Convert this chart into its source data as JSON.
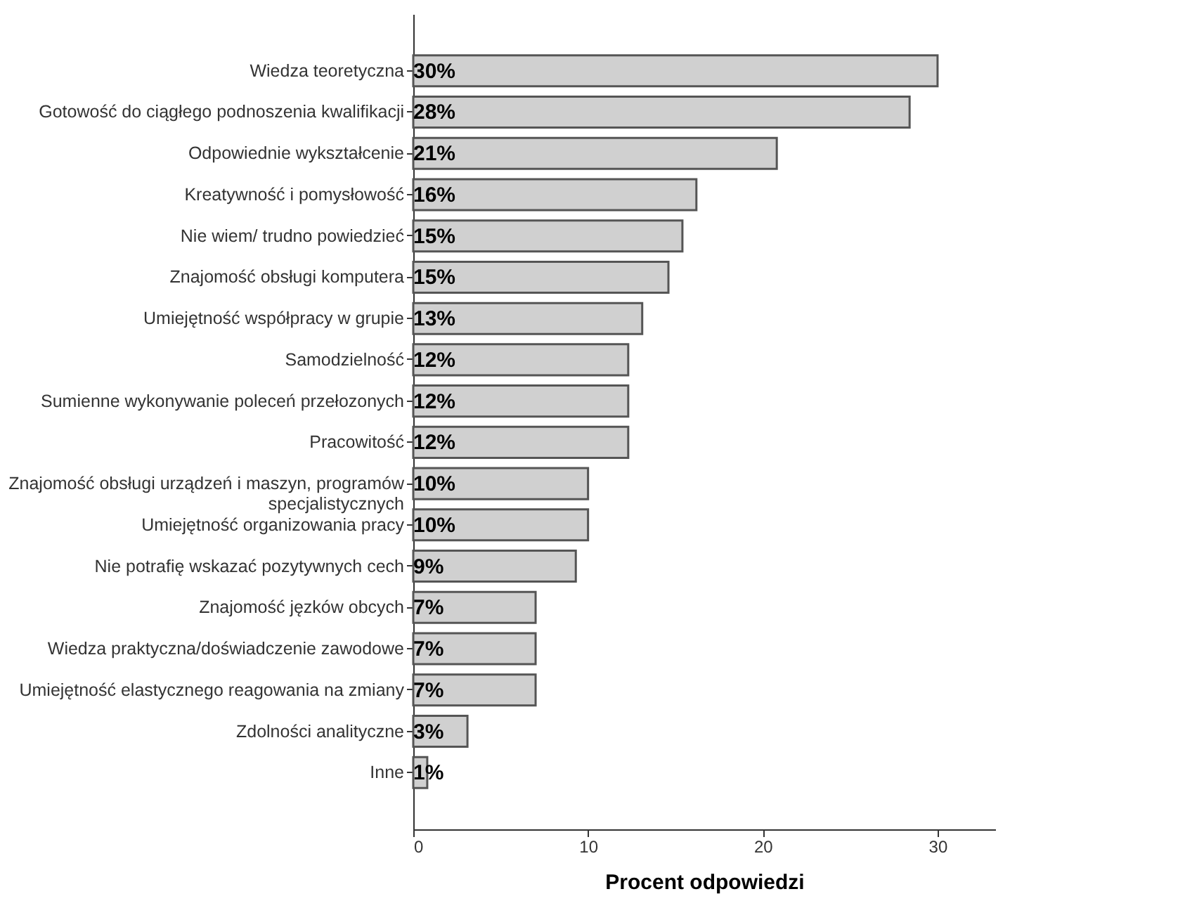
{
  "chart_data": {
    "type": "bar",
    "orientation": "horizontal",
    "xlabel": "Procent odpowiedzi",
    "categories": [
      "Wiedza teoretyczna",
      "Gotowość do ciągłego podnoszenia kwalifikacji",
      "Odpowiednie wykształcenie",
      "Kreatywność i pomysłowość",
      "Nie wiem/ trudno powiedzieć",
      "Znajomość obsługi komputera",
      "Umiejętność współpracy w grupie",
      "Samodzielność",
      "Sumienne wykonywanie poleceń przełozonych",
      "Pracowitość",
      "Znajomość obsługi urządzeń i maszyn, programów specjalistycznych",
      "Umiejętność organizowania pracy",
      "Nie potrafię wskazać pozytywnych cech",
      "Znajomość jęzków obcych",
      "Wiedza praktyczna/doświadczenie zawodowe",
      "Umiejętność elastycznego reagowania na zmiany",
      "Zdolności analityczne",
      "Inne"
    ],
    "values": [
      30.0,
      28.4,
      20.8,
      16.2,
      15.4,
      14.6,
      13.1,
      12.3,
      12.3,
      12.3,
      10.0,
      10.0,
      9.3,
      7.0,
      7.0,
      7.0,
      3.1,
      0.8
    ],
    "value_labels": [
      "30%",
      "28%",
      "21%",
      "16%",
      "15%",
      "15%",
      "13%",
      "12%",
      "12%",
      "12%",
      "10%",
      "10%",
      "9%",
      "7%",
      "7%",
      "7%",
      "3%",
      "1%"
    ],
    "color": "#d0d0d0",
    "xlim": [
      0,
      33.3
    ],
    "xticks": [
      0,
      10,
      20,
      30
    ],
    "grid": false
  }
}
